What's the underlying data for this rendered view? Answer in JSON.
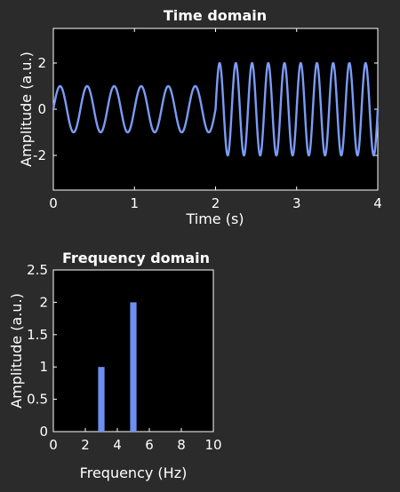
{
  "chart_data": [
    {
      "type": "line",
      "title": "Time domain",
      "xlabel": "Time (s)",
      "ylabel": "Amplitude (a.u.)",
      "xlim": [
        0,
        4
      ],
      "ylim": [
        -3.5,
        3.5
      ],
      "xticks": [
        "0",
        "1",
        "2",
        "3",
        "4"
      ],
      "yticks": [
        "-2",
        "0",
        "2"
      ],
      "grid": false,
      "series": [
        {
          "color": "#7b9cf5",
          "segments": [
            {
              "t_start": 0,
              "t_end": 2,
              "amplitude": 1,
              "frequency_hz": 3
            },
            {
              "t_start": 2,
              "t_end": 4,
              "amplitude": 2,
              "frequency_hz": 5
            }
          ]
        }
      ]
    },
    {
      "type": "bar",
      "title": "Frequency domain",
      "xlabel": "Frequency (Hz)",
      "ylabel": "Amplitude (a.u.)",
      "xlim": [
        0,
        10
      ],
      "ylim": [
        0,
        2.5
      ],
      "xticks": [
        "0",
        "2",
        "4",
        "6",
        "8",
        "10"
      ],
      "yticks": [
        "0",
        "0.5",
        "1",
        "1.5",
        "2",
        "2.5"
      ],
      "grid": false,
      "x": [
        3,
        5
      ],
      "values": [
        1,
        2
      ],
      "color": "#6d8ff0"
    }
  ]
}
